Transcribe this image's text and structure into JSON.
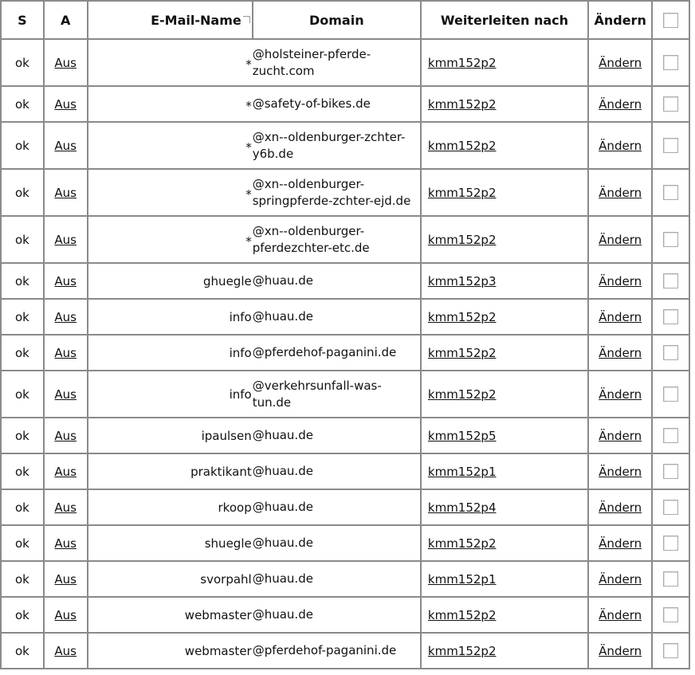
{
  "headers": {
    "s": "S",
    "a": "A",
    "name": "E-Mail-Name",
    "domain": "Domain",
    "forward": "Weiterleiten nach",
    "edit": "Ändern"
  },
  "rows": [
    {
      "s": "ok",
      "a": "Aus",
      "name": "*",
      "domain": "@holsteiner-pferde-zucht.com",
      "forward": "kmm152p2",
      "edit": "Ändern",
      "h": 59
    },
    {
      "s": "ok",
      "a": "Aus",
      "name": "*",
      "domain": "@safety-of-bikes.de",
      "forward": "kmm152p2",
      "edit": "Ändern",
      "h": 45
    },
    {
      "s": "ok",
      "a": "Aus",
      "name": "*",
      "domain": "@xn--oldenburger-zchter-y6b.de",
      "forward": "kmm152p2",
      "edit": "Ändern",
      "h": 59
    },
    {
      "s": "ok",
      "a": "Aus",
      "name": "*",
      "domain": "@xn--oldenburger-springpferde-zchter-ejd.de",
      "forward": "kmm152p2",
      "edit": "Ändern",
      "h": 59
    },
    {
      "s": "ok",
      "a": "Aus",
      "name": "*",
      "domain": "@xn--oldenburger-pferdezchter-etc.de",
      "forward": "kmm152p2",
      "edit": "Ändern",
      "h": 59
    },
    {
      "s": "ok",
      "a": "Aus",
      "name": "ghuegle",
      "domain": "@huau.de",
      "forward": "kmm152p3",
      "edit": "Ändern",
      "h": 45
    },
    {
      "s": "ok",
      "a": "Aus",
      "name": "info",
      "domain": "@huau.de",
      "forward": "kmm152p2",
      "edit": "Ändern",
      "h": 45
    },
    {
      "s": "ok",
      "a": "Aus",
      "name": "info",
      "domain": "@pferdehof-paganini.de",
      "forward": "kmm152p2",
      "edit": "Ändern",
      "h": 45
    },
    {
      "s": "ok",
      "a": "Aus",
      "name": "info",
      "domain": "@verkehrsunfall-was-tun.de",
      "forward": "kmm152p2",
      "edit": "Ändern",
      "h": 59
    },
    {
      "s": "ok",
      "a": "Aus",
      "name": "ipaulsen",
      "domain": "@huau.de",
      "forward": "kmm152p5",
      "edit": "Ändern",
      "h": 45
    },
    {
      "s": "ok",
      "a": "Aus",
      "name": "praktikant",
      "domain": "@huau.de",
      "forward": "kmm152p1",
      "edit": "Ändern",
      "h": 45
    },
    {
      "s": "ok",
      "a": "Aus",
      "name": "rkoop",
      "domain": "@huau.de",
      "forward": "kmm152p4",
      "edit": "Ändern",
      "h": 45
    },
    {
      "s": "ok",
      "a": "Aus",
      "name": "shuegle",
      "domain": "@huau.de",
      "forward": "kmm152p2",
      "edit": "Ändern",
      "h": 45
    },
    {
      "s": "ok",
      "a": "Aus",
      "name": "svorpahl",
      "domain": "@huau.de",
      "forward": "kmm152p1",
      "edit": "Ändern",
      "h": 45
    },
    {
      "s": "ok",
      "a": "Aus",
      "name": "webmaster",
      "domain": "@huau.de",
      "forward": "kmm152p2",
      "edit": "Ändern",
      "h": 45
    },
    {
      "s": "ok",
      "a": "Aus",
      "name": "webmaster",
      "domain": "@pferdehof-paganini.de",
      "forward": "kmm152p2",
      "edit": "Ändern",
      "h": 45
    }
  ]
}
